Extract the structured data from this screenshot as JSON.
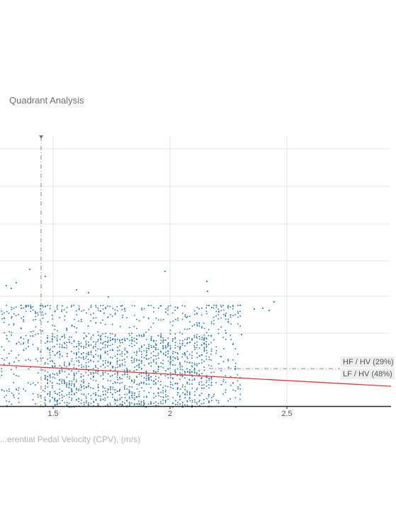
{
  "title": "Quadrant Analysis",
  "chart_data": {
    "type": "scatter",
    "title": "Quadrant Analysis",
    "xlabel": "...erential Pedal Velocity (CPV), (m/s)",
    "x_tick_labels": [
      "1.5",
      "2",
      "2.5"
    ],
    "x_ticks": [
      1.5,
      2,
      2.5
    ],
    "xlim": [
      1.0,
      2.95
    ],
    "grid": true,
    "threshold_x": 1.45,
    "quadrant_labels": [
      "HF / HV (29%)",
      "LF / HV (48%)"
    ],
    "trend_line": {
      "x": [
        1.0,
        1.5,
        2.0,
        2.5,
        2.95
      ],
      "y_rel": [
        0.52,
        0.5,
        0.485,
        0.47,
        0.462
      ]
    },
    "scatter_x_range": [
      1.0,
      2.3
    ],
    "colors": {
      "points": "#1f77b4",
      "trend": "#e03a3a",
      "grid": "#e6e6e6",
      "axis": "#222222",
      "threshold": "#888888"
    }
  }
}
